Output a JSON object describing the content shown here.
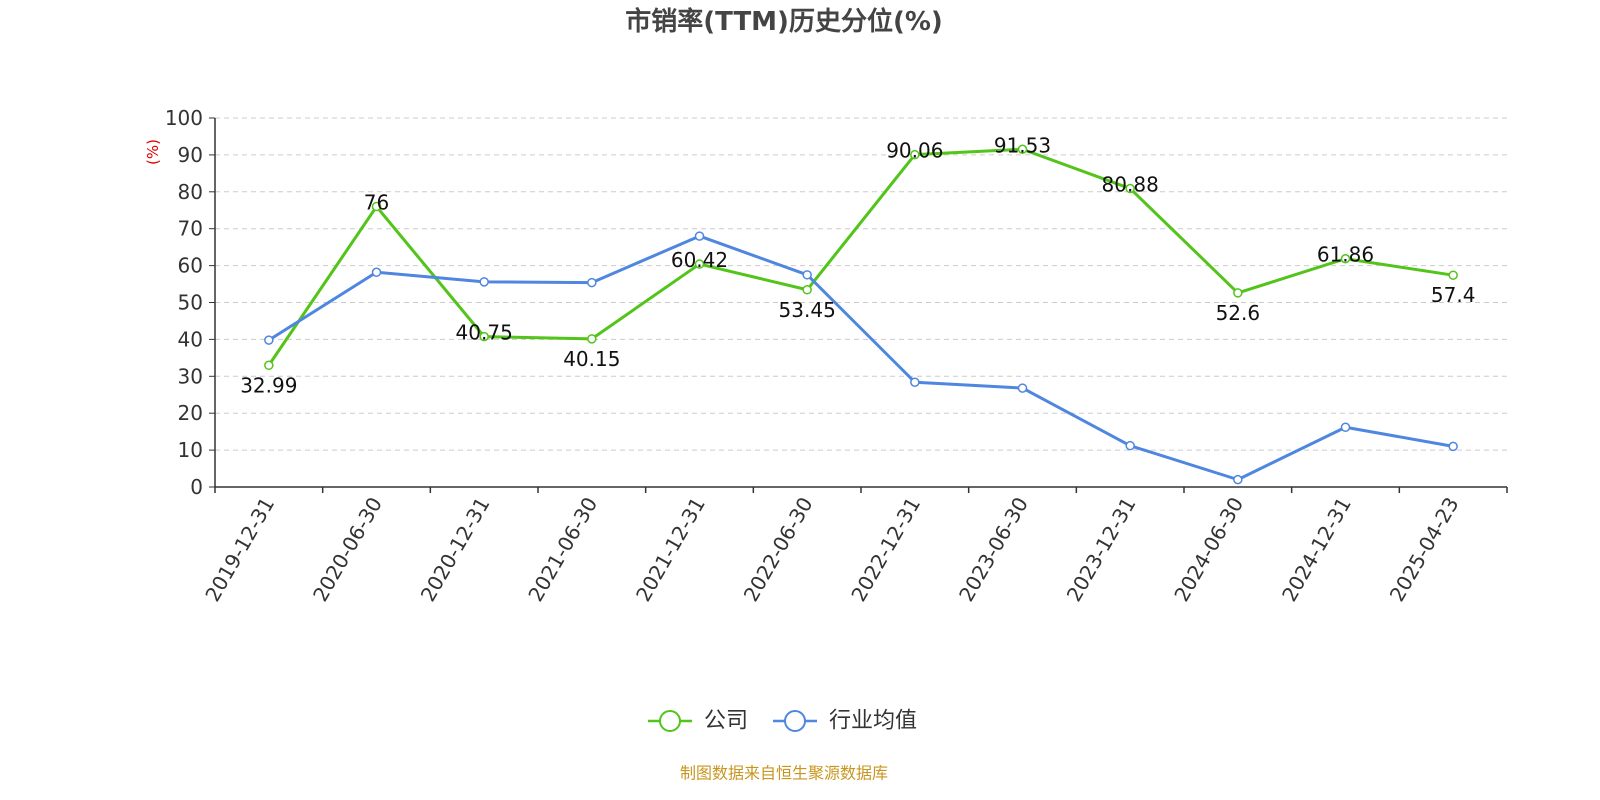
{
  "chart_data": {
    "type": "line",
    "title": "市销率(TTM)历史分位(%)",
    "ylabel": "(%)",
    "ylim": [
      0,
      100
    ],
    "yticks": [
      0,
      10,
      20,
      30,
      40,
      50,
      60,
      70,
      80,
      90,
      100
    ],
    "grid": true,
    "legend_position": "bottom",
    "categories": [
      "2019-12-31",
      "2020-06-30",
      "2020-12-31",
      "2021-06-30",
      "2021-12-31",
      "2022-06-30",
      "2022-12-31",
      "2023-06-30",
      "2023-12-31",
      "2024-06-30",
      "2024-12-31",
      "2025-04-23"
    ],
    "series": [
      {
        "name": "公司",
        "color": "#52c41a",
        "values": [
          32.99,
          76,
          40.75,
          40.15,
          60.42,
          53.45,
          90.06,
          91.53,
          80.88,
          52.6,
          61.86,
          57.4
        ],
        "labels": [
          "32.99",
          "76",
          "40.75",
          "40.15",
          "60.42",
          "53.45",
          "90.06",
          "91.53",
          "80.88",
          "52.6",
          "61.86",
          "57.4"
        ]
      },
      {
        "name": "行业均值",
        "color": "#4f86e0",
        "values": [
          39.8,
          58.2,
          55.6,
          55.4,
          68.0,
          57.5,
          28.4,
          26.8,
          11.2,
          2.0,
          16.2,
          11.0
        ]
      }
    ],
    "source_note": "制图数据来自恒生聚源数据库",
    "source_color": "#c8961e"
  }
}
